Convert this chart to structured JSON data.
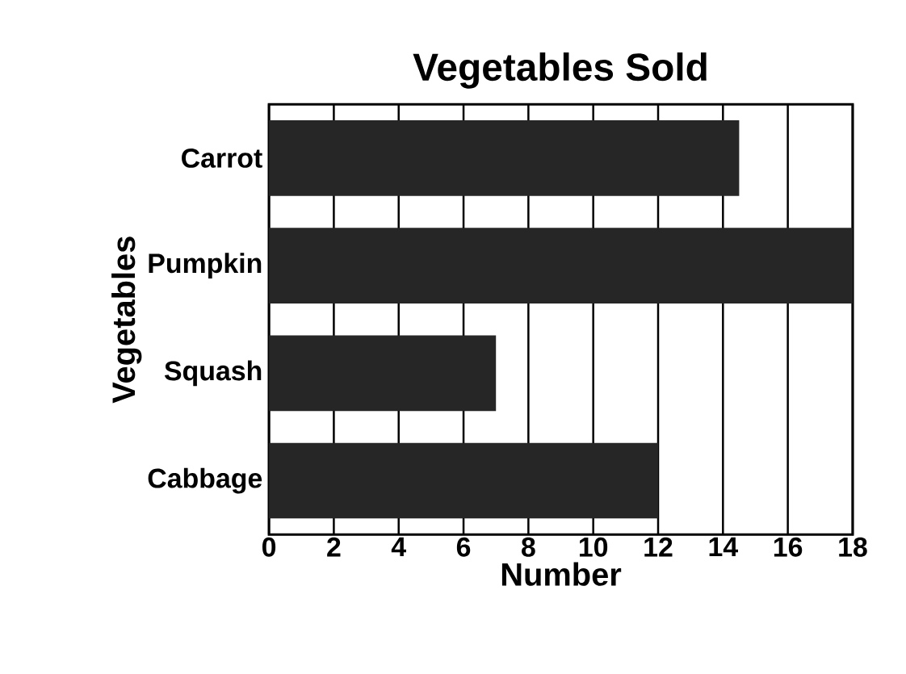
{
  "chart_data": {
    "type": "bar",
    "orientation": "horizontal",
    "title": "Vegetables Sold",
    "xlabel": "Number",
    "ylabel": "Vegetables",
    "categories": [
      "Carrot",
      "Pumpkin",
      "Squash",
      "Cabbage"
    ],
    "values": [
      14.5,
      18,
      7,
      12
    ],
    "color": "#262626",
    "xlim": [
      0,
      18
    ],
    "xticks": [
      0,
      2,
      4,
      6,
      8,
      10,
      12,
      14,
      16,
      18
    ],
    "grid": "x"
  }
}
